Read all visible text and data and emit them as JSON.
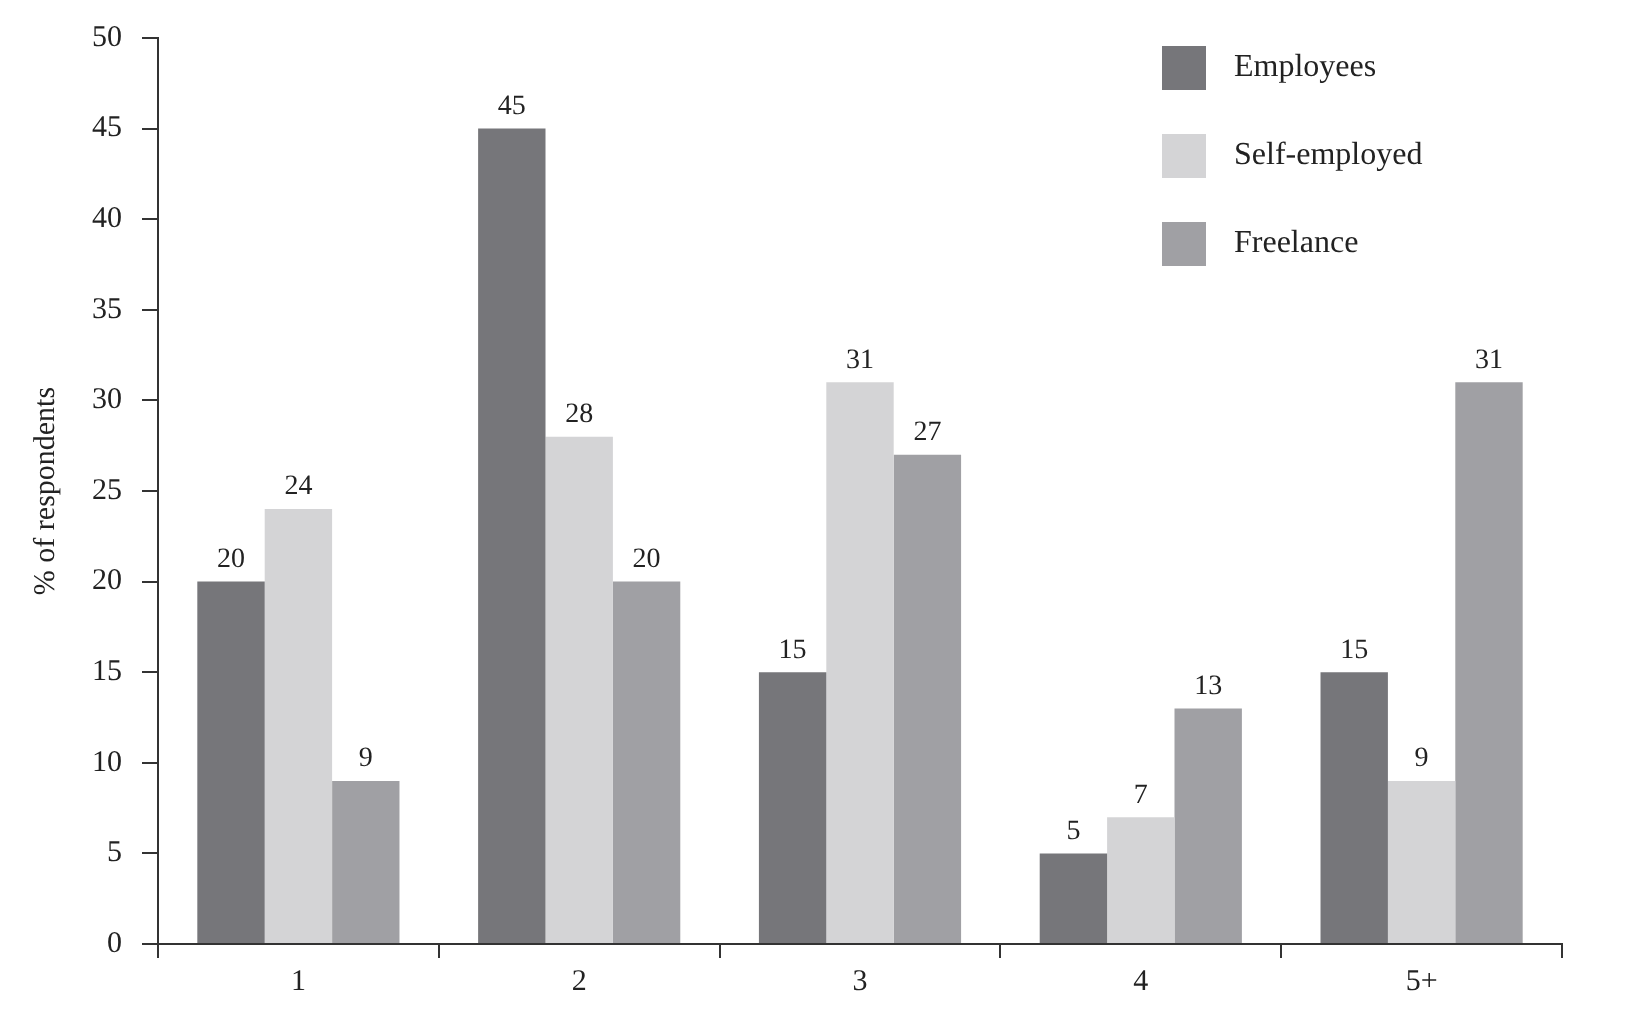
{
  "chart_data": {
    "type": "bar",
    "ylabel": "% of respondents",
    "categories": [
      "1",
      "2",
      "3",
      "4",
      "5+"
    ],
    "series": [
      {
        "name": "Employees",
        "color": "#76767a",
        "values": [
          20,
          45,
          15,
          5,
          15
        ]
      },
      {
        "name": "Self-employed",
        "color": "#d4d4d6",
        "values": [
          24,
          28,
          31,
          7,
          9
        ]
      },
      {
        "name": "Freelance",
        "color": "#a0a0a4",
        "values": [
          9,
          20,
          27,
          13,
          31
        ]
      }
    ],
    "ylim": [
      0,
      50
    ],
    "yticks": [
      0,
      5,
      10,
      15,
      20,
      25,
      30,
      35,
      40,
      45,
      50
    ],
    "grid": false,
    "legend": "top right",
    "data_labels": true
  }
}
